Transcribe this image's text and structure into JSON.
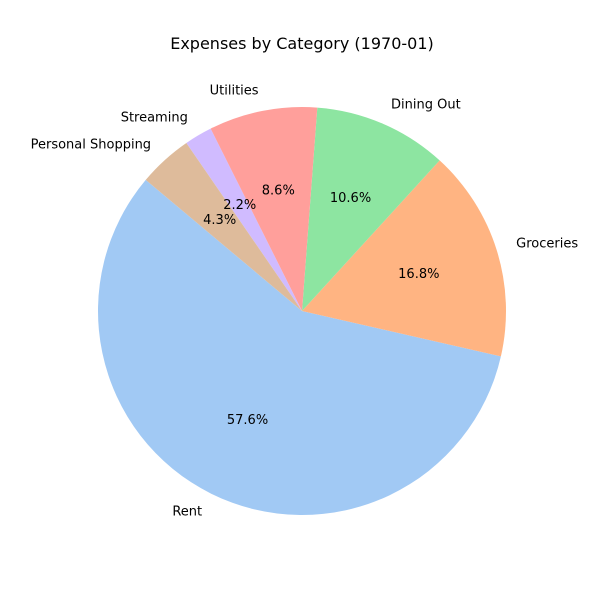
{
  "chart_data": {
    "type": "pie",
    "title": "Expenses by Category (1970-01)",
    "categories": [
      "Rent",
      "Groceries",
      "Dining Out",
      "Utilities",
      "Streaming",
      "Personal Shopping"
    ],
    "values": [
      57.6,
      16.8,
      10.6,
      8.6,
      2.2,
      4.3
    ],
    "value_labels": [
      "57.6%",
      "16.8%",
      "10.6%",
      "8.6%",
      "2.2%",
      "4.3%"
    ],
    "colors": [
      "#a1c9f4",
      "#ffb482",
      "#8de5a1",
      "#ff9f9b",
      "#d0bbff",
      "#debb9b"
    ],
    "start_angle_deg": 140,
    "direction": "counterclockwise",
    "legend": "none"
  }
}
